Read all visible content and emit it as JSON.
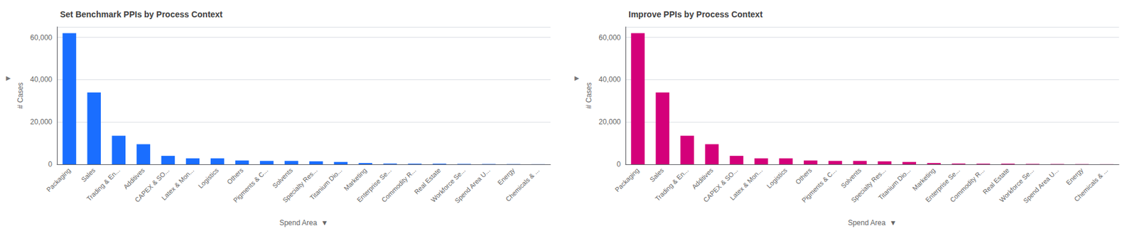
{
  "chart_data": [
    {
      "type": "bar",
      "title": "Set Benchmark PPIs by Process Context",
      "categories": [
        "Packaging",
        "Sales",
        "Trading & En...",
        "Additives",
        "CAPEX & SO...",
        "Latex & Mon...",
        "Logistics",
        "Others",
        "Pigments & C...",
        "Solvents",
        "Specialty Res...",
        "Titanium Dio...",
        "Marketing",
        "Enterprise Se...",
        "Commodity R...",
        "Real Estate",
        "Workforce Se...",
        "Spend Area U...",
        "Energy",
        "Chemicals & ..."
      ],
      "values": [
        62000,
        34000,
        13500,
        9500,
        4000,
        2800,
        2800,
        1800,
        1600,
        1600,
        1400,
        1100,
        600,
        350,
        280,
        280,
        180,
        130,
        90,
        40
      ],
      "color": "#1a6eff",
      "ylabel": "# Cases",
      "xlabel": "Spend Area  ▼",
      "annotations": [
        "▶"
      ],
      "ylim": [
        0,
        65000
      ],
      "yticks": [
        0,
        {
          "value": 20000,
          "label": "20,000"
        },
        {
          "value": 40000,
          "label": "40,000"
        },
        {
          "value": 60000,
          "label": "60,000"
        }
      ],
      "grid": true
    },
    {
      "type": "bar",
      "title": "Improve PPIs by Process Context",
      "categories": [
        "Packaging",
        "Sales",
        "Trading & En...",
        "Additives",
        "CAPEX & SO...",
        "Latex & Mon...",
        "Logistics",
        "Others",
        "Pigments & C...",
        "Solvents",
        "Specialty Res...",
        "Titanium Dio...",
        "Marketing",
        "Enterprise Se...",
        "Commodity R...",
        "Real Estate",
        "Workforce Se...",
        "Spend Area U...",
        "Energy",
        "Chemicals & ..."
      ],
      "values": [
        62000,
        34000,
        13500,
        9500,
        4000,
        2800,
        2800,
        1800,
        1600,
        1600,
        1400,
        1100,
        600,
        350,
        280,
        280,
        180,
        130,
        90,
        40
      ],
      "color": "#d4007a",
      "ylabel": "# Cases",
      "xlabel": "Spend Area  ▼",
      "annotations": [
        "▶"
      ],
      "ylim": [
        0,
        65000
      ],
      "yticks": [
        0,
        {
          "value": 20000,
          "label": "20,000"
        },
        {
          "value": 40000,
          "label": "40,000"
        },
        {
          "value": 60000,
          "label": "60,000"
        }
      ],
      "grid": true
    }
  ]
}
